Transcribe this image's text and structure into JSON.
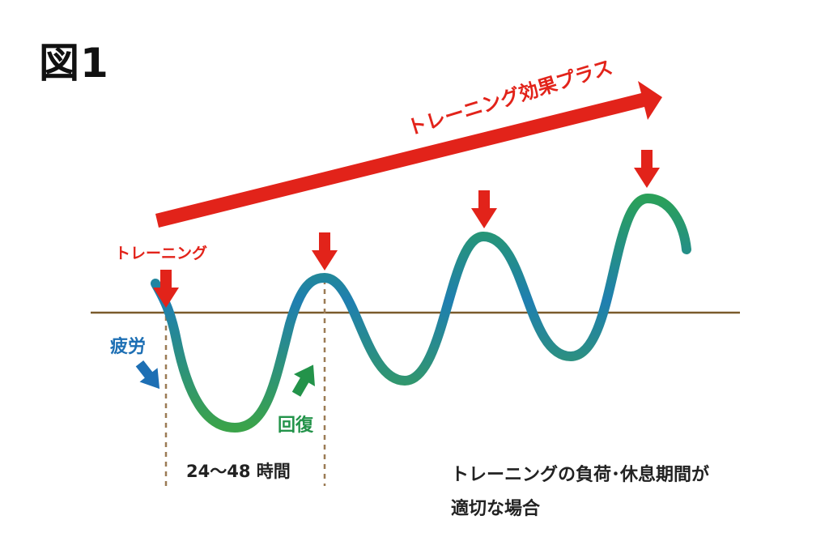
{
  "figure": {
    "title": "図1"
  },
  "labels": {
    "training_effect": "トレーニング効果プラス",
    "training": "トレーニング",
    "fatigue": "疲労",
    "recovery": "回復",
    "period": "24〜48 時間"
  },
  "caption": {
    "line1": "トレーニングの負荷･休息期間が",
    "line2": "適切な場合"
  },
  "colors": {
    "red_arrow": "#e2231a",
    "baseline": "#7a5a2c",
    "wave_blue": "#1d6fb4",
    "wave_green": "#3ba34a",
    "recovery_arrow": "#23934a",
    "fatigue_arrow": "#1d6fb4"
  }
}
